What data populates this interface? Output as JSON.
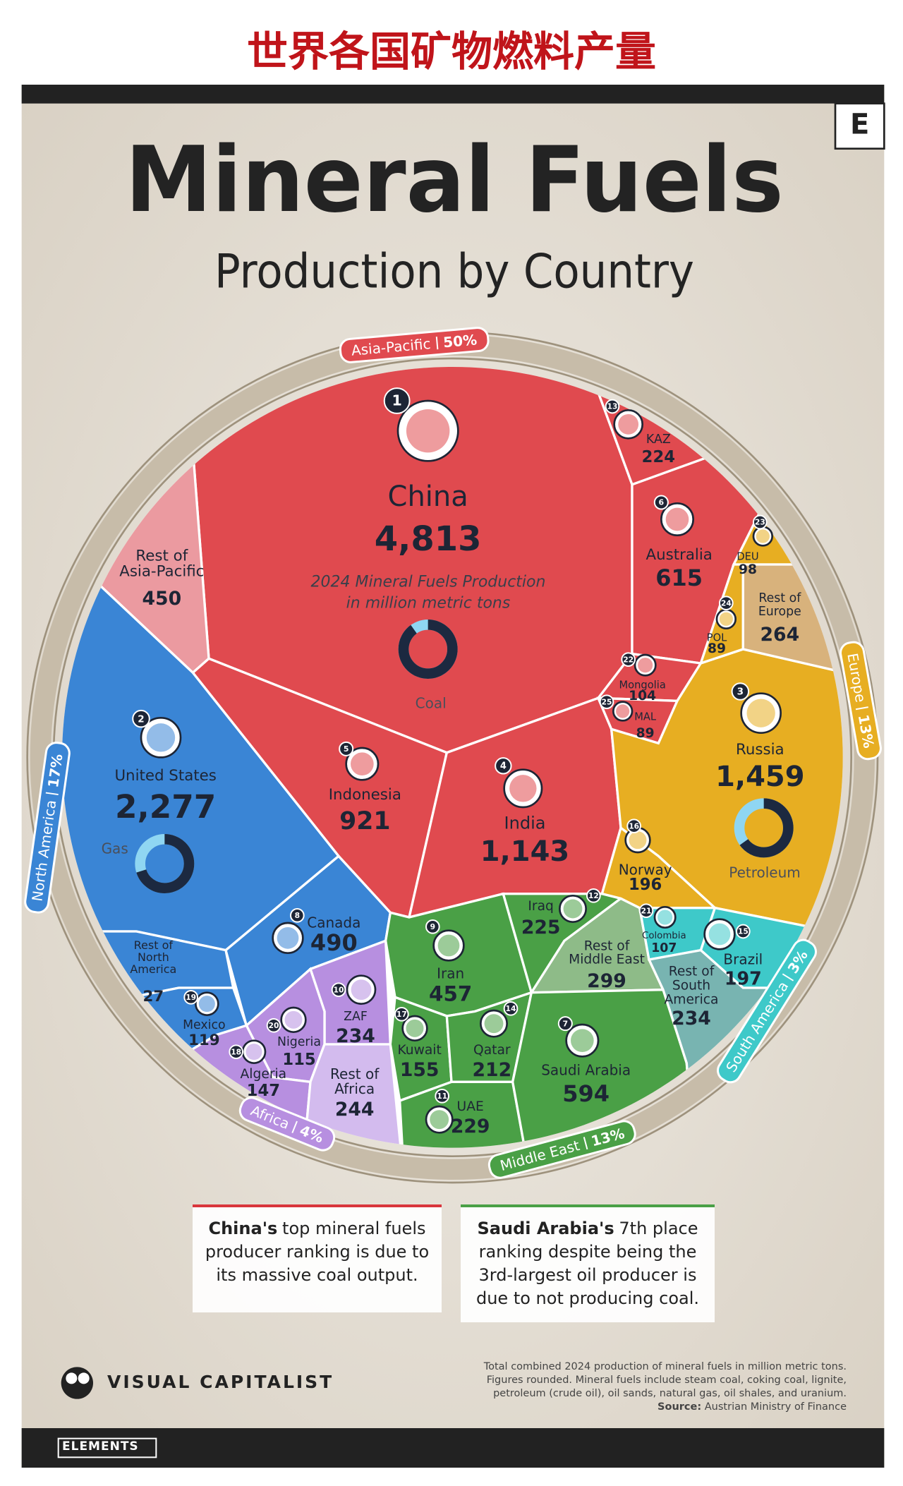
{
  "chart_data": {
    "type": "voronoi",
    "heading": "世界各国矿物燃料产量",
    "title": "Mineral Fuels",
    "subtitle": "Production by Country",
    "center_note": "2024 Mineral Fuels Production\nin million metric tons",
    "brand_mark": "E",
    "mini_donuts": [
      {
        "label": "Coal",
        "share": 90
      },
      {
        "label": "Gas",
        "share": 70
      },
      {
        "label": "Petroleum",
        "share": 65
      }
    ],
    "series": [
      {
        "name": "Asia-Pacific",
        "share": 50,
        "share_label": "50%",
        "color": "#e04a4f",
        "categories": [
          "China",
          "Rest of\nAsia-Pacific",
          "Indonesia",
          "India",
          "Australia",
          "KAZ",
          "Mongolia",
          "MAL"
        ],
        "ranks": [
          1,
          null,
          5,
          4,
          6,
          13,
          22,
          25
        ],
        "values": [
          4813,
          450,
          921,
          1143,
          615,
          224,
          104,
          89
        ],
        "value_labels": [
          "4,813",
          "450",
          "921",
          "1,143",
          "615",
          "224",
          "104",
          "89"
        ],
        "colors": [
          "#e04a4f",
          "#eb9aa0",
          "#e04a4f",
          "#e04a4f",
          "#e04a4f",
          "#e04a4f",
          "#e04a4f",
          "#e04a4f"
        ]
      },
      {
        "name": "North America",
        "share": 17,
        "share_label": "17%",
        "color": "#3a85d5",
        "categories": [
          "United States",
          "Canada",
          "Rest of\nNorth\nAmerica",
          "Mexico"
        ],
        "ranks": [
          2,
          8,
          null,
          19
        ],
        "values": [
          2277,
          490,
          27,
          119
        ],
        "value_labels": [
          "2,277",
          "490",
          "27",
          "119"
        ],
        "colors": [
          "#3a85d5",
          "#3a85d5",
          "#3a85d5",
          "#3a85d5"
        ]
      },
      {
        "name": "Africa",
        "share": 4,
        "share_label": "4%",
        "color": "#b78fe0",
        "categories": [
          "ZAF",
          "Nigeria",
          "Algeria",
          "Rest of\nAfrica"
        ],
        "ranks": [
          10,
          20,
          18,
          null
        ],
        "values": [
          234,
          115,
          147,
          244
        ],
        "value_labels": [
          "234",
          "115",
          "147",
          "244"
        ],
        "colors": [
          "#b78fe0",
          "#b78fe0",
          "#b78fe0",
          "#d3bbee"
        ]
      },
      {
        "name": "Middle East",
        "share": 13,
        "share_label": "13%",
        "color": "#4aa046",
        "categories": [
          "Iran",
          "Iraq",
          "Rest of\nMiddle East",
          "Kuwait",
          "Qatar",
          "UAE",
          "Saudi Arabia"
        ],
        "ranks": [
          9,
          12,
          null,
          17,
          14,
          11,
          7
        ],
        "values": [
          457,
          225,
          299,
          155,
          212,
          229,
          594
        ],
        "value_labels": [
          "457",
          "225",
          "299",
          "155",
          "212",
          "229",
          "594"
        ],
        "colors": [
          "#4aa046",
          "#4aa046",
          "#8ebb88",
          "#4aa046",
          "#4aa046",
          "#4aa046",
          "#4aa046"
        ]
      },
      {
        "name": "Europe",
        "share": 13,
        "share_label": "13%",
        "color": "#e7ae22",
        "categories": [
          "Russia",
          "Norway",
          "DEU",
          "POL",
          "Rest of\nEurope"
        ],
        "ranks": [
          3,
          16,
          23,
          24,
          null
        ],
        "values": [
          1459,
          196,
          98,
          89,
          264
        ],
        "value_labels": [
          "1,459",
          "196",
          "98",
          "89",
          "264"
        ],
        "colors": [
          "#e7ae22",
          "#e7ae22",
          "#e7ae22",
          "#e7ae22",
          "#d8b27c"
        ]
      },
      {
        "name": "South America",
        "share": 3,
        "share_label": "3%",
        "color": "#3ec9c9",
        "categories": [
          "Brazil",
          "Colombia",
          "Rest of\nSouth\nAmerica"
        ],
        "ranks": [
          15,
          21,
          null
        ],
        "values": [
          197,
          107,
          234
        ],
        "value_labels": [
          "197",
          "107",
          "234"
        ],
        "colors": [
          "#3ec9c9",
          "#3ec9c9",
          "#78b4b1"
        ]
      }
    ],
    "annotations": [
      {
        "bold": "China's",
        "text": "top mineral fuels producer ranking is due to its massive coal output."
      },
      {
        "bold": "Saudi Arabia's",
        "text": "7th place ranking despite being the 3rd-largest oil producer is due to not producing coal."
      }
    ],
    "publisher": "VISUAL CAPITALIST",
    "footnote": "Total combined 2024 production of mineral fuels in million metric tons.\nFigures rounded. Mineral fuels include steam coal, coking coal, lignite,\npetroleum (crude oil), oil sands, natural gas, oil shales, and uranium.",
    "source_label": "Source:",
    "source": "Austrian Ministry of Finance",
    "series_name": "ELEMENTS"
  }
}
